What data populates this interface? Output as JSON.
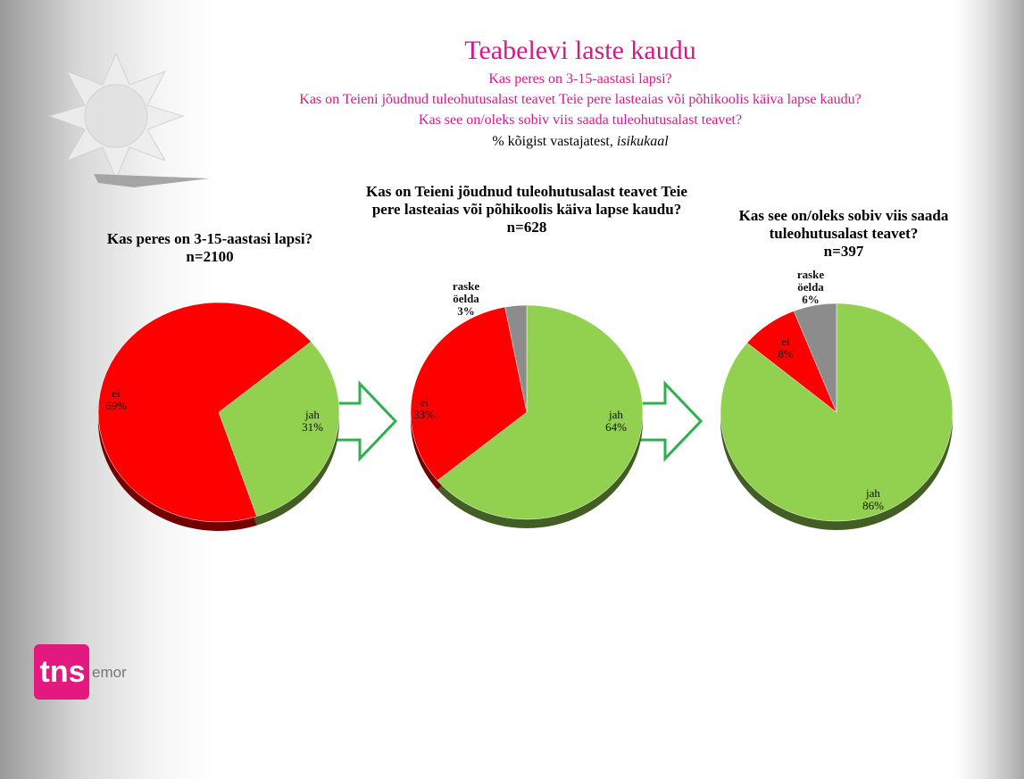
{
  "header": {
    "title": "Teabelevi laste kaudu",
    "subtitles": [
      "Kas peres on 3-15-aastasi lapsi?",
      "Kas on Teieni jõudnud tuleohutusalast teavet Teie pere lasteaias või põhikoolis käiva lapse kaudu?",
      "Kas see on/oleks sobiv viis saada tuleohutusalast teavet?"
    ],
    "note": "% kõigist vastajatest,",
    "note_italic": "isikukaal"
  },
  "chart_data": [
    {
      "type": "pie",
      "title": "Kas peres on 3-15-aastasi lapsi?",
      "subtitle": "n=2100",
      "categories": [
        "jah",
        "ei"
      ],
      "values": [
        31,
        69
      ],
      "value_labels": [
        "31%",
        "69%"
      ],
      "colors": [
        "#92d050",
        "#ff0000"
      ]
    },
    {
      "type": "pie",
      "title": "Kas on Teieni jõudnud tuleohutusalast teavet Teie pere lasteaias või põhikoolis käiva lapse kaudu?",
      "subtitle": "n=628",
      "categories": [
        "jah",
        "ei",
        "raske öelda"
      ],
      "values": [
        64,
        33,
        3
      ],
      "value_labels": [
        "64%",
        "33%",
        "3%"
      ],
      "colors": [
        "#92d050",
        "#ff0000",
        "#8c8c8c"
      ]
    },
    {
      "type": "pie",
      "title": "Kas see on/oleks sobiv viis saada tuleohutusalast teavet?",
      "subtitle": "n=397",
      "categories": [
        "jah",
        "ei",
        "raske öelda"
      ],
      "values": [
        86,
        8,
        6
      ],
      "value_labels": [
        "86%",
        "8%",
        "6%"
      ],
      "colors": [
        "#92d050",
        "#ff0000",
        "#8c8c8c"
      ]
    }
  ],
  "logo": {
    "brand": "tns",
    "name": "emor"
  }
}
